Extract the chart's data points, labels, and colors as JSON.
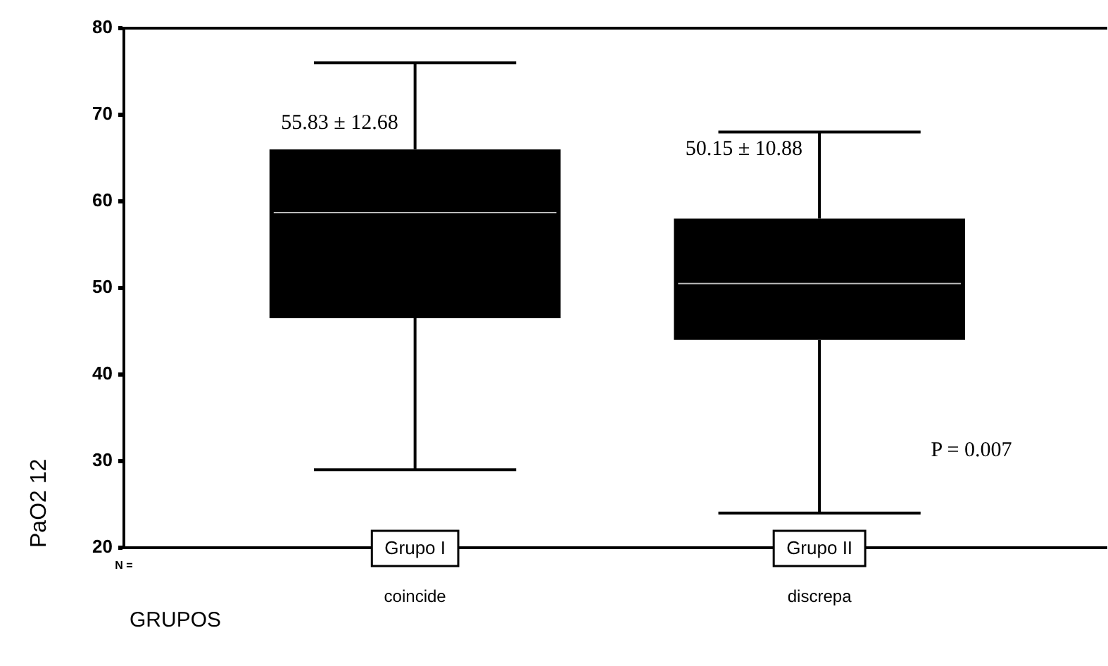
{
  "chart_data": {
    "type": "box",
    "xlabel": "GRUPOS",
    "ylabel": "PaO2 12",
    "categories": [
      "coincide",
      "discrepa"
    ],
    "series": [
      {
        "color": "#000000",
        "boxes": [
          {
            "low": 29,
            "q1": 46.5,
            "median": 58.7,
            "q3": 66,
            "high": 76
          },
          {
            "low": 24,
            "q1": 44,
            "median": 50.5,
            "q3": 58,
            "high": 68
          }
        ]
      }
    ],
    "ylim": [
      20,
      80
    ],
    "yticks": [
      20,
      30,
      40,
      50,
      60,
      70,
      80
    ],
    "grid": false,
    "legend": false,
    "annotations": [
      "Grupo I",
      "Grupo II",
      {
        "text": "55.83 ± 12.68",
        "x": "coincide",
        "y": 69
      },
      {
        "text": "50.15 ± 10.88",
        "x": "discrepa",
        "y": 66
      },
      "P = 0.007",
      "N ="
    ]
  }
}
